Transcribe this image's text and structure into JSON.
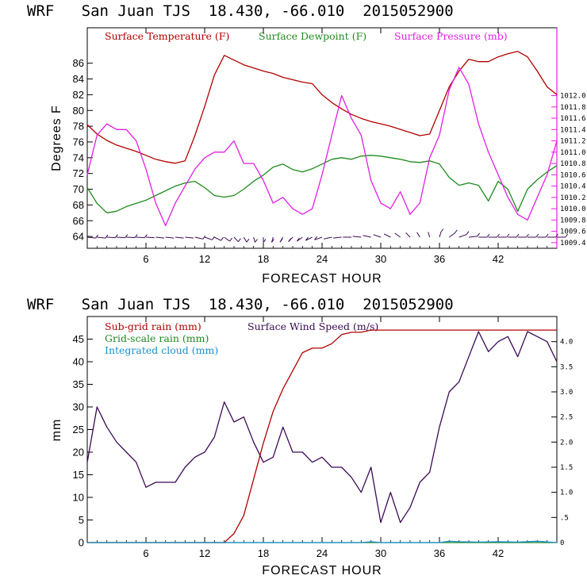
{
  "colors": {
    "temperature": "#b00000",
    "dewpoint": "#1f8a1f",
    "pressure": "#e21ee2",
    "subgrid_rain": "#b00000",
    "gridscale_rain": "#1f8a1f",
    "cloud": "#1a8fd0",
    "wind": "#3a0a55",
    "barb": "#3a0a55"
  },
  "chart_data": [
    {
      "type": "line",
      "title": "WRF   San Juan TJS  18.430, -66.010  2015052900",
      "xlabel": "FORECAST HOUR",
      "ylabel": "Degrees F",
      "xlim": [
        0,
        48
      ],
      "ylim": [
        62.5,
        90.5
      ],
      "x_ticks": [
        6,
        12,
        18,
        24,
        30,
        36,
        42
      ],
      "y_ticks": [
        64,
        66,
        68,
        70,
        72,
        74,
        76,
        78,
        80,
        82,
        84,
        86
      ],
      "y2lim": [
        1009.3,
        1013.2
      ],
      "y2_ticks": [
        "1009.4",
        "1009.6",
        "1009.8",
        "1010.0",
        "1010.2",
        "1010.4",
        "1010.6",
        "1010.8",
        "1011.0",
        "1011.2",
        "1011.4",
        "1011.6",
        "1011.8",
        "1012.0"
      ],
      "legend": [
        "Surface Temperature (F)",
        "Surface Dewpoint (F)",
        "Surface Pressure (mb)"
      ],
      "legend_position": "top",
      "series": [
        {
          "name": "Surface Temperature (F)",
          "axis": "left",
          "x": [
            0,
            1,
            2,
            3,
            4,
            5,
            6,
            7,
            8,
            9,
            10,
            11,
            12,
            13,
            14,
            15,
            16,
            17,
            18,
            19,
            20,
            21,
            22,
            23,
            24,
            25,
            26,
            27,
            28,
            29,
            30,
            31,
            32,
            33,
            34,
            35,
            36,
            37,
            38,
            39,
            40,
            41,
            42,
            43,
            44,
            45,
            46,
            47,
            48
          ],
          "y": [
            78.2,
            77.0,
            76.2,
            75.6,
            75.2,
            74.8,
            74.3,
            73.8,
            73.5,
            73.3,
            73.6,
            76.8,
            80.5,
            84.5,
            87.0,
            86.4,
            85.8,
            85.4,
            85.0,
            84.7,
            84.2,
            83.9,
            83.6,
            83.4,
            82.0,
            81.0,
            80.2,
            79.5,
            79.0,
            78.6,
            78.3,
            78.0,
            77.6,
            77.2,
            76.8,
            77.0,
            80.0,
            83.0,
            85.0,
            86.5,
            86.2,
            86.2,
            86.8,
            87.2,
            87.5,
            86.8,
            85.0,
            83.0,
            82.0
          ]
        },
        {
          "name": "Surface Dewpoint (F)",
          "axis": "left",
          "x": [
            0,
            1,
            2,
            3,
            4,
            5,
            6,
            7,
            8,
            9,
            10,
            11,
            12,
            13,
            14,
            15,
            16,
            17,
            18,
            19,
            20,
            21,
            22,
            23,
            24,
            25,
            26,
            27,
            28,
            29,
            30,
            31,
            32,
            33,
            34,
            35,
            36,
            37,
            38,
            39,
            40,
            41,
            42,
            43,
            44,
            45,
            46,
            47,
            48
          ],
          "y": [
            70.2,
            68.2,
            67.0,
            67.2,
            67.8,
            68.2,
            68.6,
            69.2,
            69.8,
            70.4,
            70.8,
            71.0,
            70.2,
            69.2,
            69.0,
            69.2,
            70.0,
            71.0,
            71.8,
            72.8,
            73.2,
            72.5,
            72.2,
            72.6,
            73.2,
            73.8,
            74.0,
            73.8,
            74.2,
            74.3,
            74.2,
            74.0,
            73.8,
            73.5,
            73.4,
            73.6,
            73.2,
            71.5,
            70.5,
            70.8,
            70.5,
            68.5,
            71.0,
            70.0,
            67.2,
            70.0,
            71.2,
            72.2,
            73.0
          ]
        },
        {
          "name": "Surface Pressure (mb)",
          "axis": "right",
          "x": [
            0,
            1,
            2,
            3,
            4,
            5,
            6,
            7,
            8,
            9,
            10,
            11,
            12,
            13,
            14,
            15,
            16,
            17,
            18,
            19,
            20,
            21,
            22,
            23,
            24,
            25,
            26,
            27,
            28,
            29,
            30,
            31,
            32,
            33,
            34,
            35,
            36,
            37,
            38,
            39,
            40,
            41,
            42,
            43,
            44,
            45,
            46,
            47,
            48
          ],
          "y": [
            1010.6,
            1011.3,
            1011.5,
            1011.4,
            1011.4,
            1011.2,
            1010.7,
            1010.1,
            1009.7,
            1010.1,
            1010.4,
            1010.7,
            1010.9,
            1011.0,
            1011.0,
            1011.2,
            1010.8,
            1010.8,
            1010.5,
            1010.1,
            1010.2,
            1010.0,
            1009.9,
            1010.0,
            1010.6,
            1011.3,
            1012.0,
            1011.6,
            1011.3,
            1010.5,
            1010.1,
            1010.0,
            1010.3,
            1009.9,
            1010.1,
            1010.9,
            1011.3,
            1012.1,
            1012.5,
            1012.2,
            1011.5,
            1011.0,
            1010.6,
            1010.2,
            1009.9,
            1009.8,
            1010.2,
            1010.6,
            1011.2
          ]
        }
      ]
    },
    {
      "type": "line",
      "title": "WRF   San Juan TJS  18.430, -66.010  2015052900",
      "xlabel": "FORECAST HOUR",
      "ylabel": "mm",
      "xlim": [
        0,
        48
      ],
      "ylim": [
        0,
        50
      ],
      "x_ticks": [
        6,
        12,
        18,
        24,
        30,
        36,
        42
      ],
      "y_ticks": [
        0,
        5,
        10,
        15,
        20,
        25,
        30,
        35,
        40,
        45
      ],
      "y2lim": [
        0,
        4.5
      ],
      "y2_ticks": [
        "0",
        ".5",
        "1.0",
        "1.5",
        "2.0",
        "2.5",
        "3.0",
        "3.5",
        "4.0"
      ],
      "legend": [
        "Sub-grid rain (mm)",
        "Grid-scale rain (mm)",
        "Integrated cloud (mm)",
        "Surface Wind Speed (m/s)"
      ],
      "legend_position": "top-left",
      "series": [
        {
          "name": "Sub-grid rain (mm)",
          "axis": "left",
          "x": [
            0,
            13,
            14,
            15,
            16,
            17,
            18,
            19,
            20,
            21,
            22,
            23,
            24,
            25,
            26,
            27,
            28,
            29,
            30,
            31,
            32,
            33,
            34,
            35,
            36,
            37,
            38,
            39,
            40,
            41,
            42,
            43,
            44,
            45,
            46,
            47,
            48
          ],
          "y": [
            0,
            0,
            0,
            2,
            6,
            14,
            22,
            29,
            34,
            38,
            42,
            43,
            43,
            44,
            46,
            46.5,
            46.5,
            47,
            47,
            47,
            47,
            47,
            47,
            47,
            47,
            47,
            47,
            47,
            47,
            47,
            47,
            47,
            47,
            47,
            47,
            47,
            47
          ]
        },
        {
          "name": "Grid-scale rain (mm)",
          "axis": "left",
          "x": [
            0,
            48
          ],
          "y": [
            0,
            0
          ]
        },
        {
          "name": "Integrated cloud (mm)",
          "axis": "left",
          "x": [
            0,
            28,
            29,
            30,
            36,
            37,
            38,
            40,
            42,
            44,
            46,
            48
          ],
          "y": [
            0,
            0,
            0.2,
            0,
            0,
            0.3,
            0.2,
            0.1,
            0.2,
            0.1,
            0.3,
            0
          ]
        },
        {
          "name": "Surface Wind Speed (m/s)",
          "axis": "right",
          "x": [
            0,
            1,
            2,
            3,
            4,
            5,
            6,
            7,
            8,
            9,
            10,
            11,
            12,
            13,
            14,
            15,
            16,
            17,
            18,
            19,
            20,
            21,
            22,
            23,
            24,
            25,
            26,
            27,
            28,
            29,
            30,
            31,
            32,
            33,
            34,
            35,
            36,
            37,
            38,
            39,
            40,
            41,
            42,
            43,
            44,
            45,
            46,
            47,
            48
          ],
          "y": [
            1.6,
            2.7,
            2.3,
            2.0,
            1.8,
            1.6,
            1.1,
            1.2,
            1.2,
            1.2,
            1.5,
            1.7,
            1.8,
            2.1,
            2.8,
            2.4,
            2.5,
            2.0,
            1.6,
            1.7,
            2.3,
            1.8,
            1.8,
            1.6,
            1.7,
            1.5,
            1.5,
            1.3,
            1.0,
            1.5,
            0.4,
            1.0,
            0.4,
            0.7,
            1.2,
            1.4,
            2.3,
            3.0,
            3.2,
            3.7,
            4.2,
            3.8,
            4.0,
            4.1,
            3.7,
            4.2,
            4.1,
            4.0,
            3.6
          ]
        }
      ],
      "wind_barbs": {
        "x": [
          0,
          1,
          2,
          3,
          4,
          5,
          6,
          7,
          8,
          9,
          10,
          11,
          12,
          13,
          14,
          15,
          16,
          17,
          18,
          19,
          20,
          21,
          22,
          23,
          24,
          25,
          26,
          27,
          28,
          29,
          30,
          31,
          32,
          33,
          34,
          35,
          36,
          37,
          38,
          39,
          40,
          41,
          42,
          43,
          44,
          45,
          46,
          47,
          48
        ],
        "direction_deg": [
          100,
          100,
          95,
          95,
          95,
          95,
          95,
          100,
          100,
          100,
          100,
          110,
          120,
          130,
          140,
          150,
          160,
          170,
          180,
          190,
          200,
          210,
          220,
          230,
          240,
          250,
          260,
          270,
          280,
          290,
          300,
          310,
          320,
          330,
          340,
          350,
          10,
          40,
          60,
          80,
          90,
          90,
          90,
          90,
          90,
          90,
          90,
          90,
          90
        ],
        "speed_ms": [
          1.6,
          2.7,
          2.3,
          2.0,
          1.8,
          1.6,
          1.1,
          1.2,
          1.2,
          1.2,
          1.5,
          1.7,
          1.8,
          2.1,
          2.8,
          2.4,
          2.5,
          2.0,
          1.6,
          1.7,
          2.3,
          1.8,
          1.8,
          1.6,
          1.7,
          1.5,
          1.5,
          1.3,
          1.0,
          1.5,
          0.4,
          1.0,
          0.4,
          0.7,
          1.2,
          1.4,
          2.3,
          3.0,
          3.2,
          3.7,
          4.2,
          3.8,
          4.0,
          4.1,
          3.7,
          4.2,
          4.1,
          4.0,
          3.6
        ]
      }
    }
  ]
}
